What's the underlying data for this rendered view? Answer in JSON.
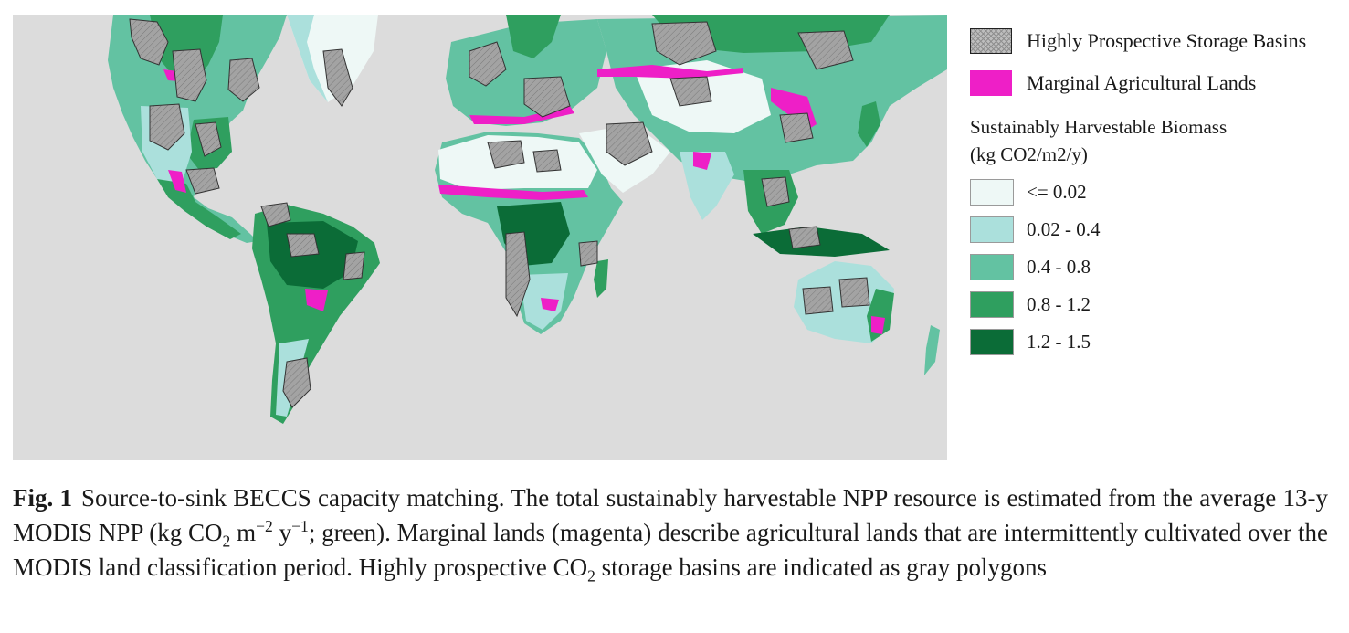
{
  "legend": {
    "basins_label": "Highly Prospective Storage Basins",
    "marginal_label": "Marginal Agricultural Lands",
    "marginal_color": "#ee1fc7",
    "biomass_title_line1": "Sustainably Harvestable Biomass",
    "biomass_title_line2": "(kg CO2/m2/y)",
    "biomass_classes": [
      {
        "label": "<= 0.02",
        "color": "#eef8f6"
      },
      {
        "label": "0.02 - 0.4",
        "color": "#abe0dc"
      },
      {
        "label": "0.4 - 0.8",
        "color": "#63c2a2"
      },
      {
        "label": "0.8 - 1.2",
        "color": "#2f9f5f"
      },
      {
        "label": "1.2 - 1.5",
        "color": "#0b6c37"
      }
    ]
  },
  "colors": {
    "ocean": "#dcdcdc",
    "basin_fill": "#9a9a9a",
    "basin_stroke": "#333333"
  },
  "caption": {
    "fig_label": "Fig. 1",
    "t1": "Source-to-sink BECCS capacity matching. The total sustainably harvestable NPP resource is estimated from the average 13-y MODIS NPP (kg CO",
    "sub1": "2",
    "t2": " m",
    "sup1": "−2",
    "t3": " y",
    "sup2": "−1",
    "t4": "; green). Marginal lands (magenta) describe agricultural lands that are intermittently cultivated over the MODIS land classification period. Highly prospective CO",
    "sub2": "2",
    "t5": " storage basins are indicated as gray polygons"
  }
}
